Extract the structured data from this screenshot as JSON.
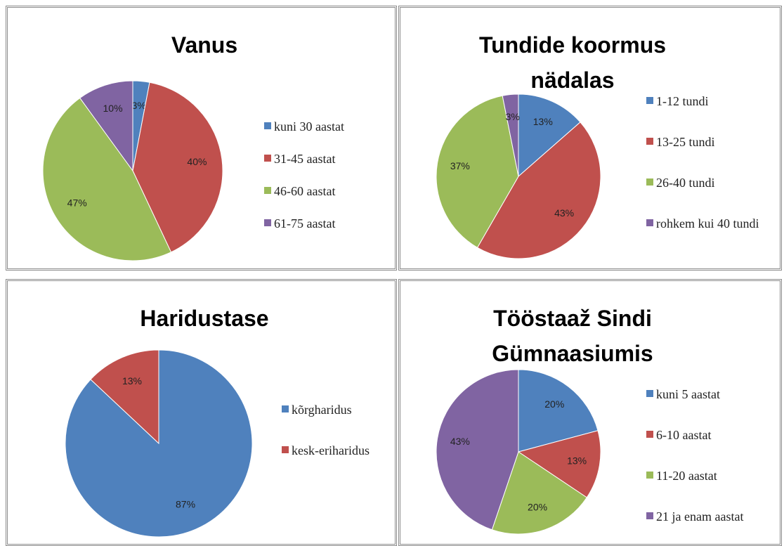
{
  "chart_data": [
    {
      "type": "pie",
      "title": "Vanus",
      "categories": [
        "kuni 30 aastat",
        "31-45 aastat",
        "46-60 aastat",
        "61-75 aastat"
      ],
      "values": [
        3,
        40,
        47,
        10
      ],
      "value_labels": [
        "3%",
        "40%",
        "47%",
        "10%"
      ],
      "colors": [
        "#4f81bd",
        "#c0504d",
        "#9bbb59",
        "#8064a2"
      ],
      "legend": "right"
    },
    {
      "type": "pie",
      "title": "Tundide koormus nädalas",
      "categories": [
        "1-12 tundi",
        "13-25 tundi",
        "26-40 tundi",
        "rohkem kui 40 tundi"
      ],
      "values": [
        13,
        43,
        37,
        3
      ],
      "value_labels": [
        "13%",
        "43%",
        "37%",
        "3%"
      ],
      "colors": [
        "#4f81bd",
        "#c0504d",
        "#9bbb59",
        "#8064a2"
      ],
      "legend": "right"
    },
    {
      "type": "pie",
      "title": "Haridustase",
      "categories": [
        "kõrgharidus",
        "kesk-eriharidus"
      ],
      "values": [
        87,
        13
      ],
      "value_labels": [
        "87%",
        "13%"
      ],
      "colors": [
        "#4f81bd",
        "#c0504d"
      ],
      "legend": "right"
    },
    {
      "type": "pie",
      "title": "Tööstaaž Sindi Gümnaasiumis",
      "categories": [
        "kuni 5 aastat",
        "6-10 aastat",
        "11-20 aastat",
        "21 ja enam aastat"
      ],
      "values": [
        20,
        13,
        20,
        43
      ],
      "value_labels": [
        "20%",
        "13%",
        "20%",
        "43%"
      ],
      "colors": [
        "#4f81bd",
        "#c0504d",
        "#9bbb59",
        "#8064a2"
      ],
      "legend": "right"
    }
  ]
}
